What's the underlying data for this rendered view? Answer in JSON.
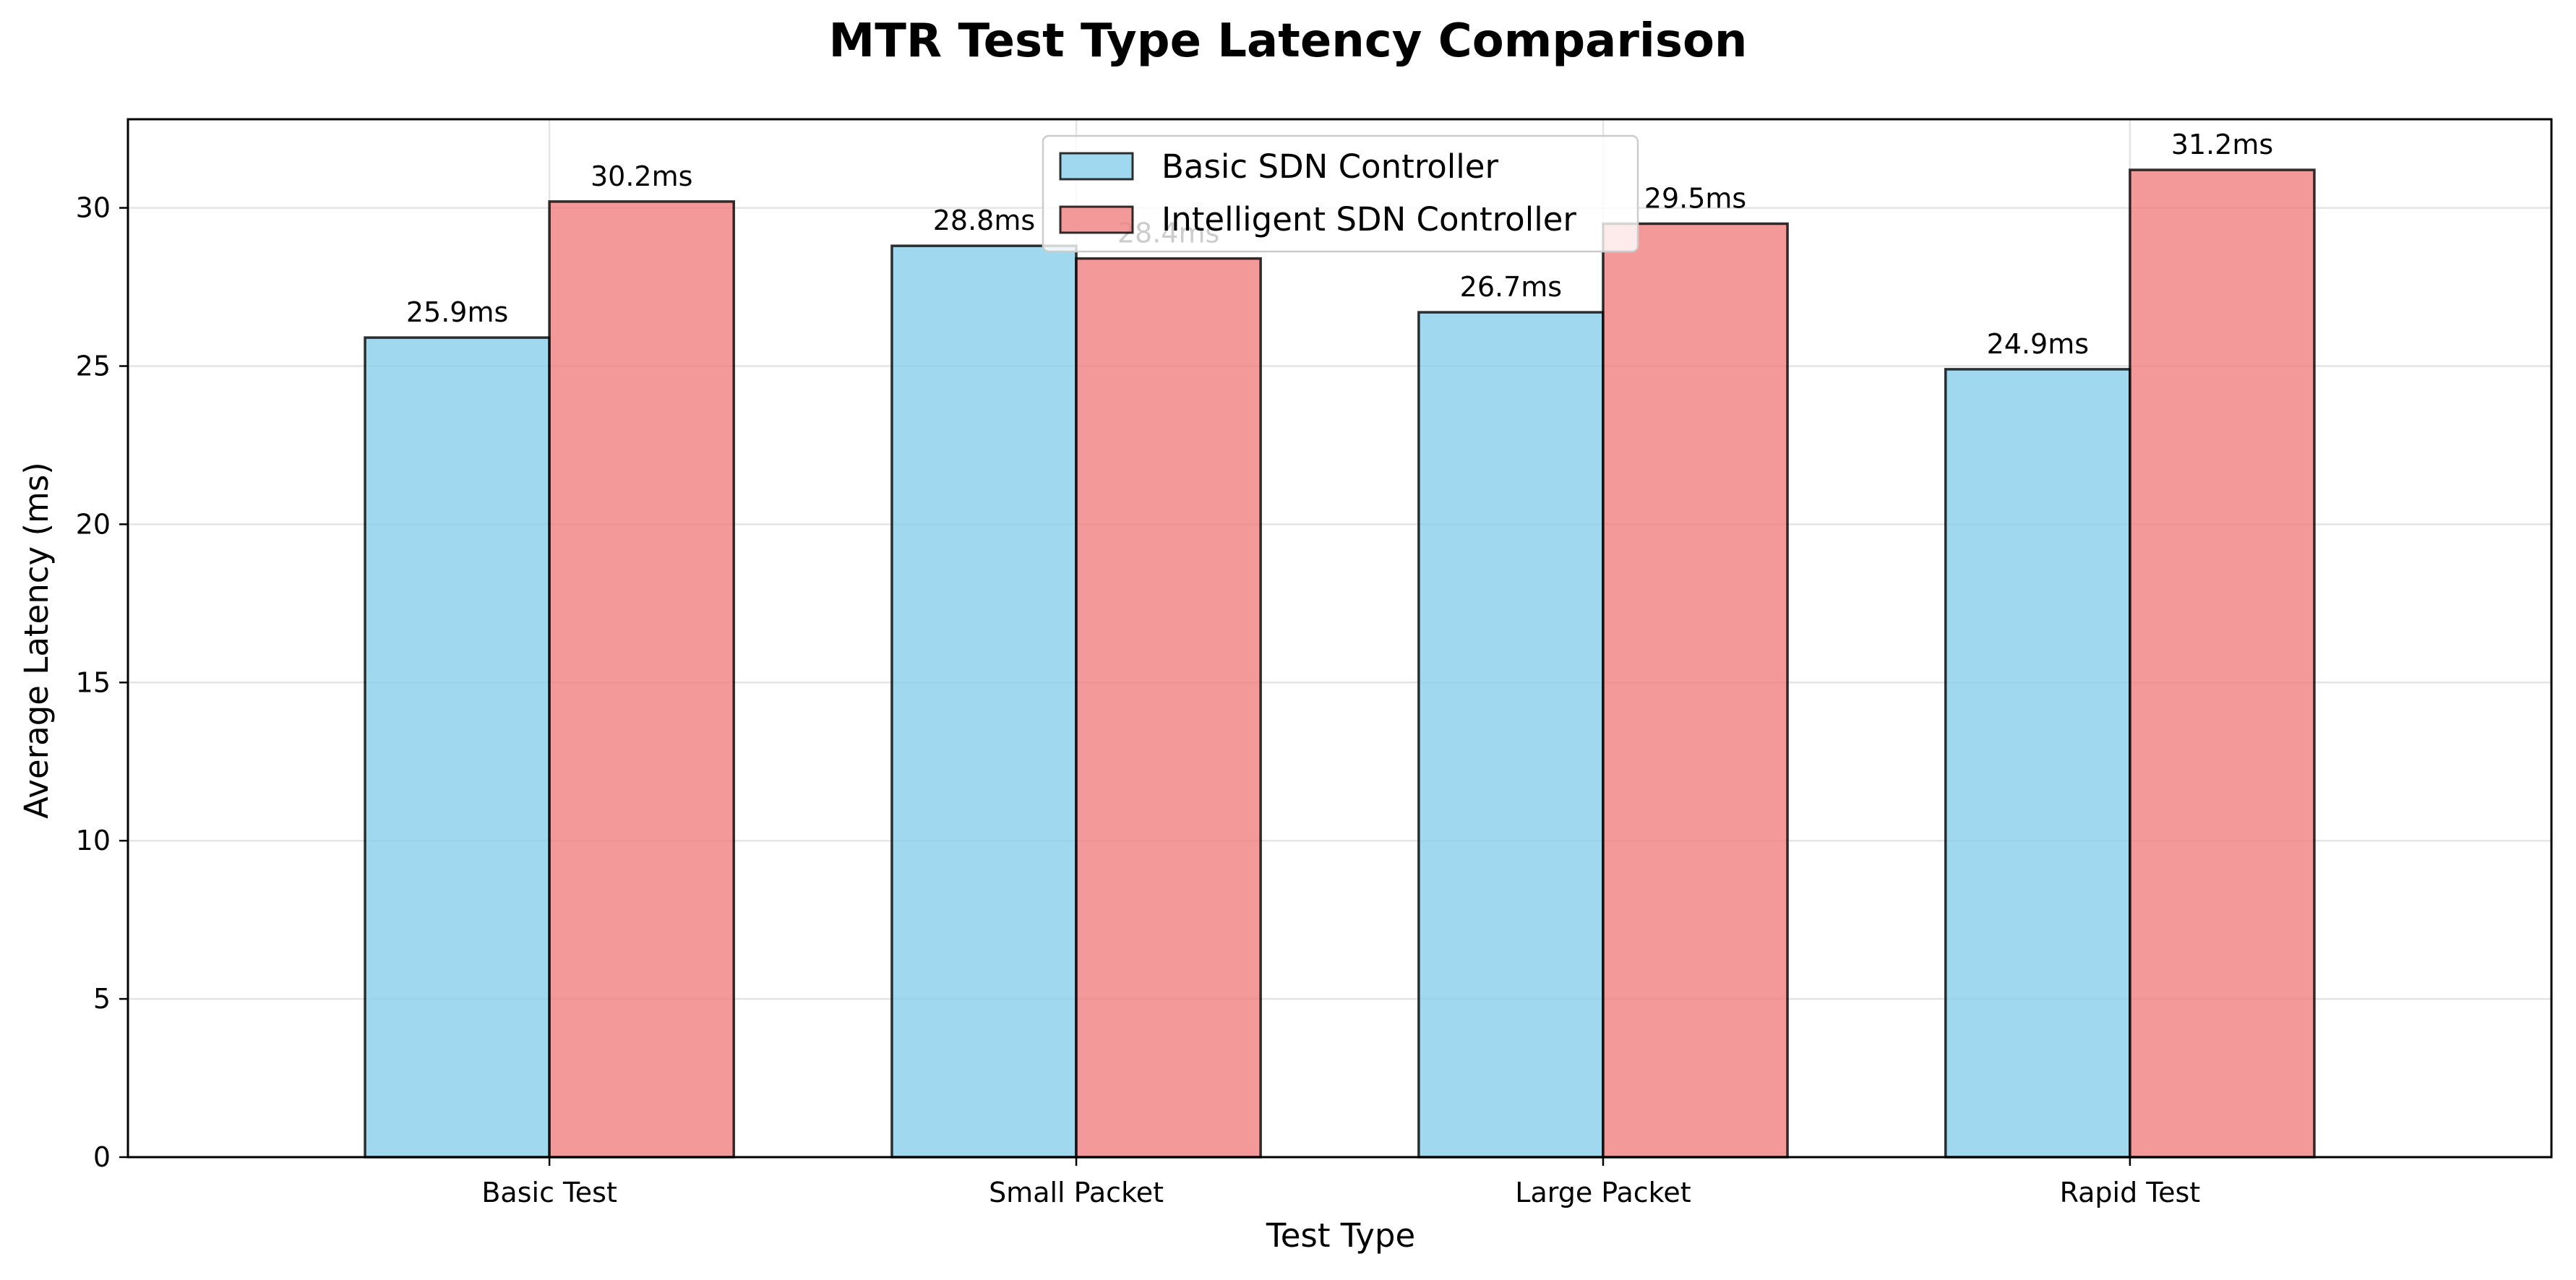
{
  "chart_data": {
    "type": "bar",
    "title": "MTR Test Type Latency Comparison",
    "xlabel": "Test Type",
    "ylabel": "Average Latency (ms)",
    "categories": [
      "Basic Test",
      "Small Packet",
      "Large Packet",
      "Rapid Test"
    ],
    "series": [
      {
        "name": "Basic SDN Controller",
        "values": [
          25.9,
          28.8,
          26.7,
          24.9
        ],
        "labels": [
          "25.9ms",
          "28.8ms",
          "26.7ms",
          "24.9ms"
        ],
        "color": "#87ceeb"
      },
      {
        "name": "Intelligent SDN Controller",
        "values": [
          30.2,
          28.4,
          29.5,
          31.2
        ],
        "labels": [
          "30.2ms",
          "28.4ms",
          "29.5ms",
          "31.2ms"
        ],
        "color": "#f08080"
      }
    ],
    "ylim": [
      0,
      32.8
    ],
    "yticks": [
      0,
      5,
      10,
      15,
      20,
      25,
      30
    ],
    "grid": true,
    "legend_position": "upper-center"
  }
}
